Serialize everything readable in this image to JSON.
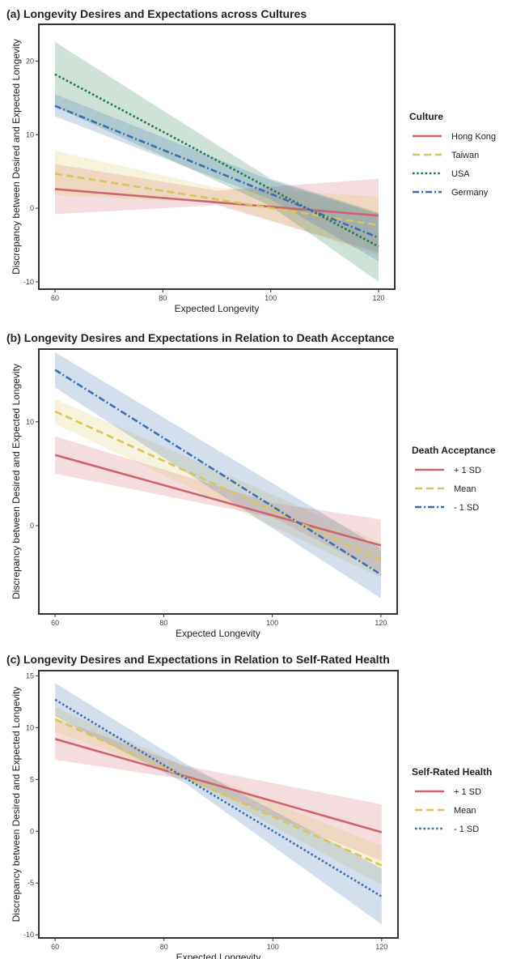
{
  "chart_data": [
    {
      "type": "line",
      "title": "(a) Longevity Desires and Expectations across Cultures",
      "xlabel": "Expected Longevity",
      "ylabel": "Discrepancy between Desired and Expected Longevity",
      "xlim": [
        57,
        123
      ],
      "ylim": [
        -11,
        25
      ],
      "xticks": [
        60,
        80,
        100,
        120
      ],
      "yticks": [
        -10,
        0,
        10,
        20
      ],
      "legend_title": "Culture",
      "legend_position": "right",
      "series": [
        {
          "name": "Hong Kong",
          "color": "#d0636f",
          "dash": "solid",
          "x": [
            60,
            120
          ],
          "y": [
            2.6,
            -1.0
          ],
          "ci_lower": [
            [
              60,
              -0.8
            ],
            [
              90,
              0.4
            ],
            [
              120,
              -6.0
            ]
          ],
          "ci_upper": [
            [
              60,
              6.0
            ],
            [
              90,
              2.4
            ],
            [
              120,
              4.0
            ]
          ]
        },
        {
          "name": "Taiwan",
          "color": "#d9c55a",
          "dash": "dashed",
          "x": [
            60,
            120
          ],
          "y": [
            4.7,
            -2.3
          ],
          "ci_lower": [
            [
              60,
              1.8
            ],
            [
              90,
              0.7
            ],
            [
              120,
              -6.4
            ]
          ],
          "ci_upper": [
            [
              60,
              7.8
            ],
            [
              90,
              2.8
            ],
            [
              120,
              1.6
            ]
          ]
        },
        {
          "name": "USA",
          "color": "#1f7a4d",
          "dash": "dotted",
          "x": [
            60,
            120
          ],
          "y": [
            18.2,
            -5.2
          ],
          "ci_lower": [
            [
              60,
              13.8
            ],
            [
              100,
              0.3
            ],
            [
              120,
              -10.0
            ]
          ],
          "ci_upper": [
            [
              60,
              22.6
            ],
            [
              100,
              4.0
            ],
            [
              120,
              -0.6
            ]
          ]
        },
        {
          "name": "Germany",
          "color": "#3c6fb0",
          "dash": "dotdash",
          "x": [
            60,
            120
          ],
          "y": [
            13.9,
            -4.0
          ],
          "ci_lower": [
            [
              60,
              12.5
            ],
            [
              100,
              1.2
            ],
            [
              120,
              -7.2
            ]
          ],
          "ci_upper": [
            [
              60,
              15.5
            ],
            [
              100,
              3.8
            ],
            [
              120,
              -0.8
            ]
          ]
        }
      ]
    },
    {
      "type": "line",
      "title": "(b) Longevity Desires and Expectations in Relation to Death Acceptance",
      "xlabel": "Expected Longevity",
      "ylabel": "Discrepancy between Desired and Expected Longevity",
      "xlim": [
        57,
        123
      ],
      "ylim": [
        -8.5,
        17
      ],
      "xticks": [
        60,
        80,
        100,
        120
      ],
      "yticks": [
        0,
        10
      ],
      "legend_title": "Death Acceptance",
      "legend_position": "right",
      "series": [
        {
          "name": "+ 1 SD",
          "color": "#d0636f",
          "dash": "solid",
          "x": [
            60,
            120
          ],
          "y": [
            6.8,
            -1.9
          ],
          "ci_lower": [
            [
              60,
              5.0
            ],
            [
              100,
              0.8
            ],
            [
              120,
              -4.5
            ]
          ],
          "ci_upper": [
            [
              60,
              8.6
            ],
            [
              100,
              2.2
            ],
            [
              120,
              0.6
            ]
          ]
        },
        {
          "name": "Mean",
          "color": "#d9c55a",
          "dash": "dashed",
          "x": [
            60,
            120
          ],
          "y": [
            11.0,
            -3.3
          ],
          "ci_lower": [
            [
              60,
              9.8
            ],
            [
              120,
              -5.0
            ]
          ],
          "ci_upper": [
            [
              60,
              12.2
            ],
            [
              120,
              -1.6
            ]
          ]
        },
        {
          "name": "- 1 SD",
          "color": "#3c6fb0",
          "dash": "dotdash",
          "x": [
            60,
            120
          ],
          "y": [
            15.0,
            -4.7
          ],
          "ci_lower": [
            [
              60,
              13.3
            ],
            [
              120,
              -7.0
            ]
          ],
          "ci_upper": [
            [
              60,
              16.7
            ],
            [
              120,
              -2.2
            ]
          ]
        }
      ]
    },
    {
      "type": "line",
      "title": "(c) Longevity Desires and Expectations in Relation to Self-Rated Health",
      "xlabel": "Expected Longevity",
      "ylabel": "Discrepancy between Desired and Expected Longevity",
      "xlim": [
        57,
        123
      ],
      "ylim": [
        -10.3,
        15.5
      ],
      "xticks": [
        60,
        80,
        100,
        120
      ],
      "yticks": [
        -10,
        -5,
        0,
        5,
        10,
        15
      ],
      "legend_title": "Self-Rated Health",
      "legend_position": "right",
      "series": [
        {
          "name": "+ 1 SD",
          "color": "#d0636f",
          "dash": "solid",
          "x": [
            60,
            120
          ],
          "y": [
            8.9,
            -0.1
          ],
          "ci_lower": [
            [
              60,
              6.9
            ],
            [
              84,
              5.0
            ],
            [
              120,
              -2.9
            ]
          ],
          "ci_upper": [
            [
              60,
              10.9
            ],
            [
              84,
              6.3
            ],
            [
              120,
              2.6
            ]
          ]
        },
        {
          "name": "Mean",
          "color": "#d9c55a",
          "dash": "dashed",
          "x": [
            60,
            120
          ],
          "y": [
            10.8,
            -3.3
          ],
          "ci_lower": [
            [
              60,
              9.6
            ],
            [
              84,
              5.1
            ],
            [
              120,
              -5.2
            ]
          ],
          "ci_upper": [
            [
              60,
              12.0
            ],
            [
              84,
              6.2
            ],
            [
              120,
              -1.4
            ]
          ]
        },
        {
          "name": "- 1 SD",
          "color": "#3c6fb0",
          "dash": "dotted",
          "x": [
            60,
            120
          ],
          "y": [
            12.7,
            -6.3
          ],
          "ci_lower": [
            [
              60,
              11.1
            ],
            [
              84,
              4.6
            ],
            [
              120,
              -9.0
            ]
          ],
          "ci_upper": [
            [
              60,
              14.3
            ],
            [
              84,
              6.5
            ],
            [
              120,
              -3.6
            ]
          ]
        }
      ]
    }
  ]
}
